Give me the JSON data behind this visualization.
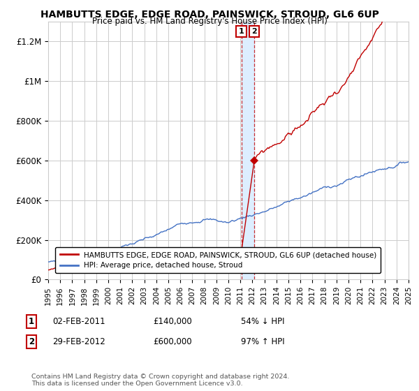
{
  "title": "HAMBUTTS EDGE, EDGE ROAD, PAINSWICK, STROUD, GL6 6UP",
  "subtitle": "Price paid vs. HM Land Registry's House Price Index (HPI)",
  "legend_label_1": "HAMBUTTS EDGE, EDGE ROAD, PAINSWICK, STROUD, GL6 6UP (detached house)",
  "legend_label_2": "HPI: Average price, detached house, Stroud",
  "footer": "Contains HM Land Registry data © Crown copyright and database right 2024.\nThis data is licensed under the Open Government Licence v3.0.",
  "transaction_1": {
    "label": "1",
    "date": "02-FEB-2011",
    "price": "£140,000",
    "hpi": "54% ↓ HPI",
    "year": 2011.08,
    "price_val": 140000
  },
  "transaction_2": {
    "label": "2",
    "date": "29-FEB-2012",
    "price": "£600,000",
    "hpi": "97% ↑ HPI",
    "year": 2012.16,
    "price_val": 600000
  },
  "hpi_color": "#4472c4",
  "price_color": "#c00000",
  "highlight_color": "#ddeeff",
  "grid_color": "#cccccc",
  "ylim": [
    0,
    1300000
  ],
  "yticks": [
    0,
    200000,
    400000,
    600000,
    800000,
    1000000,
    1200000
  ],
  "ytick_labels": [
    "£0",
    "£200K",
    "£400K",
    "£600K",
    "£800K",
    "£1M",
    "£1.2M"
  ],
  "xmin": 1995,
  "xmax": 2025
}
